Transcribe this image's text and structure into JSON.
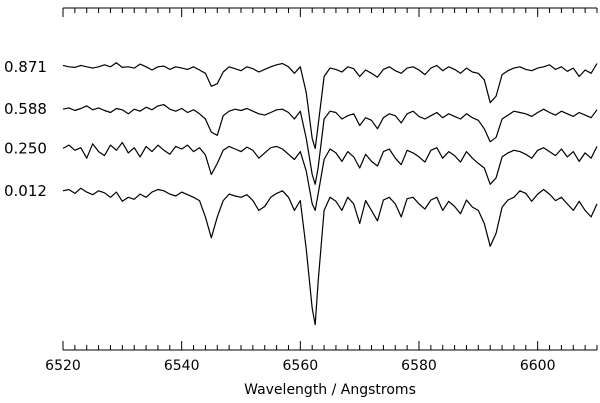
{
  "chart_data": {
    "type": "line",
    "title": "",
    "xlabel": "Wavelength / Angstroms",
    "ylabel": "",
    "xlim": [
      6520,
      6610
    ],
    "x_ticks": [
      6520,
      6540,
      6560,
      6580,
      6600
    ],
    "x_tick_labels": [
      "6520",
      "6540",
      "6560",
      "6580",
      "6600"
    ],
    "y_ticks_shown": false,
    "grid": false,
    "legend": "none",
    "series_labels_placement": "left, beside each spectrum",
    "series": [
      {
        "name": "0.871",
        "continuum": 2.5,
        "x": [
          6520,
          6521,
          6522,
          6523,
          6524,
          6525,
          6526,
          6527,
          6528,
          6529,
          6530,
          6531,
          6532,
          6533,
          6534,
          6535,
          6536,
          6537,
          6538,
          6539,
          6540,
          6541,
          6542,
          6543,
          6544,
          6545,
          6546,
          6547,
          6548,
          6549,
          6550,
          6551,
          6552,
          6553,
          6554,
          6555,
          6556,
          6557,
          6558,
          6559,
          6560,
          6561,
          6562,
          6562.5,
          6563,
          6564,
          6565,
          6566,
          6567,
          6568,
          6569,
          6570,
          6571,
          6572,
          6573,
          6574,
          6575,
          6576,
          6577,
          6578,
          6579,
          6580,
          6581,
          6582,
          6583,
          6584,
          6585,
          6586,
          6587,
          6588,
          6589,
          6590,
          6591,
          6592,
          6593,
          6594,
          6595,
          6596,
          6597,
          6598,
          6599,
          6600,
          6601,
          6602,
          6603,
          6604,
          6605,
          6606,
          6607,
          6608,
          6609,
          6610
        ],
        "y": [
          2.52,
          2.5,
          2.49,
          2.52,
          2.5,
          2.48,
          2.5,
          2.53,
          2.5,
          2.56,
          2.49,
          2.5,
          2.48,
          2.54,
          2.5,
          2.45,
          2.5,
          2.51,
          2.46,
          2.5,
          2.48,
          2.46,
          2.5,
          2.45,
          2.4,
          2.2,
          2.24,
          2.42,
          2.5,
          2.47,
          2.44,
          2.5,
          2.47,
          2.42,
          2.46,
          2.5,
          2.53,
          2.55,
          2.5,
          2.4,
          2.5,
          2.1,
          1.4,
          1.25,
          1.6,
          2.35,
          2.48,
          2.46,
          2.42,
          2.5,
          2.47,
          2.35,
          2.45,
          2.4,
          2.34,
          2.46,
          2.5,
          2.44,
          2.4,
          2.48,
          2.5,
          2.45,
          2.38,
          2.48,
          2.52,
          2.44,
          2.5,
          2.46,
          2.4,
          2.48,
          2.42,
          2.4,
          2.3,
          1.95,
          2.05,
          2.38,
          2.44,
          2.48,
          2.5,
          2.46,
          2.44,
          2.48,
          2.5,
          2.53,
          2.46,
          2.5,
          2.43,
          2.48,
          2.35,
          2.45,
          2.4,
          2.55
        ]
      },
      {
        "name": "0.588",
        "continuum": 1.85,
        "x": [
          6520,
          6521,
          6522,
          6523,
          6524,
          6525,
          6526,
          6527,
          6528,
          6529,
          6530,
          6531,
          6532,
          6533,
          6534,
          6535,
          6536,
          6537,
          6538,
          6539,
          6540,
          6541,
          6542,
          6543,
          6544,
          6545,
          6546,
          6547,
          6548,
          6549,
          6550,
          6551,
          6552,
          6553,
          6554,
          6555,
          6556,
          6557,
          6558,
          6559,
          6560,
          6561,
          6562,
          6562.5,
          6563,
          6564,
          6565,
          6566,
          6567,
          6568,
          6569,
          6570,
          6571,
          6572,
          6573,
          6574,
          6575,
          6576,
          6577,
          6578,
          6579,
          6580,
          6581,
          6582,
          6583,
          6584,
          6585,
          6586,
          6587,
          6588,
          6589,
          6590,
          6591,
          6592,
          6593,
          6594,
          6595,
          6596,
          6597,
          6598,
          6599,
          6600,
          6601,
          6602,
          6603,
          6604,
          6605,
          6606,
          6607,
          6608,
          6609,
          6610
        ],
        "y": [
          1.85,
          1.87,
          1.83,
          1.86,
          1.9,
          1.84,
          1.87,
          1.83,
          1.8,
          1.86,
          1.84,
          1.78,
          1.85,
          1.82,
          1.88,
          1.84,
          1.9,
          1.92,
          1.85,
          1.82,
          1.86,
          1.8,
          1.84,
          1.78,
          1.7,
          1.5,
          1.45,
          1.75,
          1.82,
          1.85,
          1.83,
          1.86,
          1.82,
          1.78,
          1.76,
          1.8,
          1.84,
          1.85,
          1.8,
          1.7,
          1.82,
          1.4,
          0.85,
          0.7,
          0.95,
          1.7,
          1.82,
          1.8,
          1.7,
          1.75,
          1.78,
          1.6,
          1.72,
          1.68,
          1.55,
          1.72,
          1.78,
          1.75,
          1.64,
          1.78,
          1.82,
          1.74,
          1.7,
          1.75,
          1.8,
          1.72,
          1.78,
          1.74,
          1.7,
          1.78,
          1.72,
          1.68,
          1.55,
          1.35,
          1.42,
          1.7,
          1.76,
          1.82,
          1.8,
          1.78,
          1.74,
          1.8,
          1.85,
          1.8,
          1.76,
          1.82,
          1.78,
          1.74,
          1.8,
          1.76,
          1.72,
          1.84
        ]
      },
      {
        "name": "0.250",
        "continuum": 1.25,
        "x": [
          6520,
          6521,
          6522,
          6523,
          6524,
          6525,
          6526,
          6527,
          6528,
          6529,
          6530,
          6531,
          6532,
          6533,
          6534,
          6535,
          6536,
          6537,
          6538,
          6539,
          6540,
          6541,
          6542,
          6543,
          6544,
          6545,
          6546,
          6547,
          6548,
          6549,
          6550,
          6551,
          6552,
          6553,
          6554,
          6555,
          6556,
          6557,
          6558,
          6559,
          6560,
          6561,
          6562,
          6562.5,
          6563,
          6564,
          6565,
          6566,
          6567,
          6568,
          6569,
          6570,
          6571,
          6572,
          6573,
          6574,
          6575,
          6576,
          6577,
          6578,
          6579,
          6580,
          6581,
          6582,
          6583,
          6584,
          6585,
          6586,
          6587,
          6588,
          6589,
          6590,
          6591,
          6592,
          6593,
          6594,
          6595,
          6596,
          6597,
          6598,
          6599,
          6600,
          6601,
          6602,
          6603,
          6604,
          6605,
          6606,
          6607,
          6608,
          6609,
          6610
        ],
        "y": [
          1.25,
          1.3,
          1.22,
          1.26,
          1.1,
          1.32,
          1.2,
          1.14,
          1.3,
          1.22,
          1.34,
          1.18,
          1.26,
          1.12,
          1.28,
          1.2,
          1.3,
          1.22,
          1.16,
          1.28,
          1.24,
          1.3,
          1.2,
          1.26,
          1.15,
          0.85,
          1.02,
          1.22,
          1.28,
          1.24,
          1.2,
          1.27,
          1.22,
          1.1,
          1.18,
          1.26,
          1.28,
          1.24,
          1.16,
          1.08,
          1.2,
          0.9,
          0.4,
          0.3,
          0.55,
          1.08,
          1.24,
          1.18,
          1.05,
          1.2,
          1.12,
          0.95,
          1.16,
          1.05,
          0.98,
          1.2,
          1.24,
          1.1,
          1.0,
          1.22,
          1.18,
          1.12,
          1.04,
          1.22,
          1.26,
          1.1,
          1.2,
          1.14,
          1.04,
          1.2,
          1.1,
          1.02,
          0.95,
          0.7,
          0.8,
          1.12,
          1.18,
          1.22,
          1.2,
          1.16,
          1.1,
          1.22,
          1.26,
          1.2,
          1.14,
          1.24,
          1.12,
          1.2,
          1.05,
          1.18,
          1.1,
          1.28
        ]
      },
      {
        "name": "0.012",
        "continuum": 0.6,
        "x": [
          6520,
          6521,
          6522,
          6523,
          6524,
          6525,
          6526,
          6527,
          6528,
          6529,
          6530,
          6531,
          6532,
          6533,
          6534,
          6535,
          6536,
          6537,
          6538,
          6539,
          6540,
          6541,
          6542,
          6543,
          6544,
          6545,
          6546,
          6547,
          6548,
          6549,
          6550,
          6551,
          6552,
          6553,
          6554,
          6555,
          6556,
          6557,
          6558,
          6559,
          6560,
          6561,
          6562,
          6562.5,
          6563,
          6564,
          6565,
          6566,
          6567,
          6568,
          6569,
          6570,
          6571,
          6572,
          6573,
          6574,
          6575,
          6576,
          6577,
          6578,
          6579,
          6580,
          6581,
          6582,
          6583,
          6584,
          6585,
          6586,
          6587,
          6588,
          6589,
          6590,
          6591,
          6592,
          6593,
          6594,
          6595,
          6596,
          6597,
          6598,
          6599,
          6600,
          6601,
          6602,
          6603,
          6604,
          6605,
          6606,
          6607,
          6608,
          6609,
          6610
        ],
        "y": [
          0.6,
          0.62,
          0.56,
          0.64,
          0.58,
          0.54,
          0.6,
          0.57,
          0.5,
          0.58,
          0.44,
          0.5,
          0.47,
          0.55,
          0.5,
          0.58,
          0.62,
          0.6,
          0.55,
          0.52,
          0.58,
          0.54,
          0.5,
          0.45,
          0.2,
          -0.12,
          0.2,
          0.45,
          0.55,
          0.52,
          0.5,
          0.54,
          0.45,
          0.3,
          0.36,
          0.5,
          0.56,
          0.6,
          0.5,
          0.3,
          0.45,
          -0.3,
          -1.2,
          -1.45,
          -0.8,
          0.3,
          0.5,
          0.44,
          0.3,
          0.5,
          0.4,
          0.1,
          0.45,
          0.3,
          0.14,
          0.46,
          0.5,
          0.4,
          0.2,
          0.48,
          0.5,
          0.4,
          0.32,
          0.46,
          0.5,
          0.3,
          0.44,
          0.36,
          0.25,
          0.46,
          0.35,
          0.3,
          0.1,
          -0.25,
          -0.05,
          0.35,
          0.46,
          0.5,
          0.6,
          0.56,
          0.44,
          0.55,
          0.62,
          0.55,
          0.45,
          0.5,
          0.4,
          0.3,
          0.44,
          0.3,
          0.2,
          0.4
        ]
      }
    ]
  }
}
